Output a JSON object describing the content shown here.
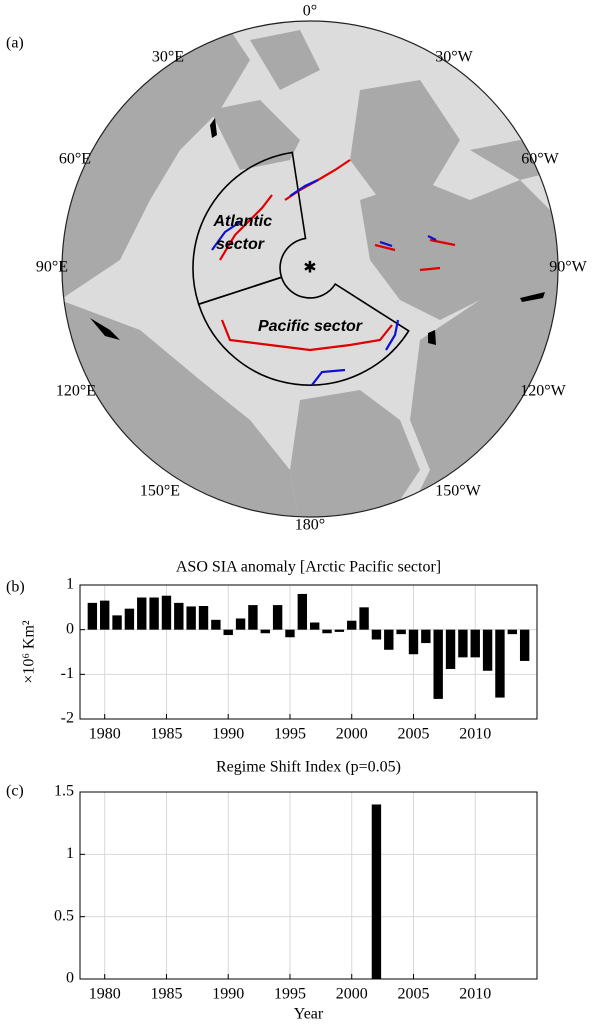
{
  "chart_data": [
    {
      "type": "map",
      "panel": "(a)",
      "lon_labels": [
        "0°",
        "30°E",
        "30°W",
        "60°E",
        "60°W",
        "90°E",
        "90°W",
        "120°E",
        "120°W",
        "150°E",
        "150°W",
        "180°"
      ],
      "sector_labels": [
        [
          "Atlantic ",
          "sector"
        ],
        [
          "Pacific sector"
        ]
      ]
    },
    {
      "type": "bar",
      "panel": "(b)",
      "title": "ASO SIA anomaly [Arctic Pacific sector]",
      "ylabel": "×10⁶ Km²",
      "x": [
        1979,
        1980,
        1981,
        1982,
        1983,
        1984,
        1985,
        1986,
        1987,
        1988,
        1989,
        1990,
        1991,
        1992,
        1993,
        1994,
        1995,
        1996,
        1997,
        1998,
        1999,
        2000,
        2001,
        2002,
        2003,
        2004,
        2005,
        2006,
        2007,
        2008,
        2009,
        2010,
        2011,
        2012,
        2013,
        2014
      ],
      "values": [
        0.6,
        0.65,
        0.32,
        0.47,
        0.72,
        0.72,
        0.76,
        0.6,
        0.52,
        0.53,
        0.22,
        -0.12,
        0.25,
        0.55,
        -0.08,
        0.55,
        -0.17,
        0.8,
        0.16,
        -0.08,
        -0.05,
        0.2,
        0.5,
        -0.22,
        -0.45,
        -0.1,
        -0.55,
        -0.3,
        -1.55,
        -0.88,
        -0.62,
        -0.62,
        -0.92,
        -1.52,
        -0.1,
        -0.7
      ],
      "color": "#000000",
      "xlim": [
        1978,
        2015
      ],
      "xticks": [
        1980,
        1985,
        1990,
        1995,
        2000,
        2005,
        2010
      ],
      "ylim": [
        -2,
        1
      ],
      "yticks": [
        -2,
        -1,
        0,
        1
      ],
      "grid": true
    },
    {
      "type": "bar",
      "panel": "(c)",
      "title": "Regime Shift Index (p=0.05)",
      "xlabel": "Year",
      "x": [
        2002
      ],
      "values": [
        1.4
      ],
      "color": "#000000",
      "xlim": [
        1978,
        2015
      ],
      "xticks": [
        1980,
        1985,
        1990,
        1995,
        2000,
        2005,
        2010
      ],
      "ylim": [
        0,
        1.5
      ],
      "yticks": [
        0,
        0.5,
        1,
        1.5
      ],
      "grid": true
    }
  ]
}
